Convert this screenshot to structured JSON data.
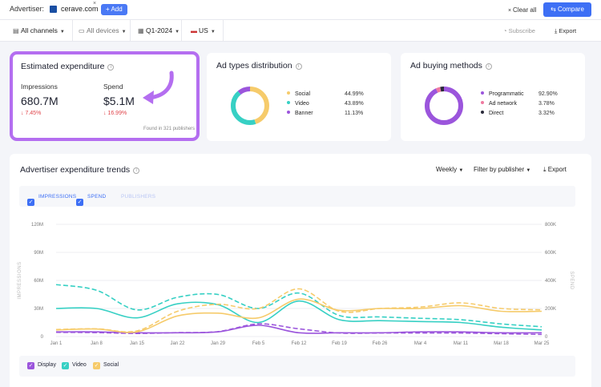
{
  "topbar": {
    "advertiser_label": "Advertiser:",
    "advertiser_name": "cerave.com",
    "remove_label": "×",
    "add_label": "+ Add",
    "clear_all": "Clear all",
    "compare": "Compare"
  },
  "filters": {
    "channels": "All channels",
    "devices": "All devices",
    "period": "Q1-2024",
    "country": "US",
    "subscribe": "Subscribe",
    "export": "Export"
  },
  "estimated": {
    "title": "Estimated expenditure",
    "impressions_label": "Impressions",
    "impressions_value": "680.7M",
    "impressions_change": "↓ 7.45%",
    "spend_label": "Spend",
    "spend_value": "$5.1M",
    "spend_change": "↓ 16.99%",
    "found": "Found in 321 publishers"
  },
  "ad_types": {
    "title": "Ad types distribution",
    "items": [
      {
        "label": "Social",
        "pct": "44.99%",
        "value": 44.99,
        "color": "#f6cb6b"
      },
      {
        "label": "Video",
        "pct": "43.89%",
        "value": 43.89,
        "color": "#37d0c4"
      },
      {
        "label": "Banner",
        "pct": "11.13%",
        "value": 11.13,
        "color": "#9b55dc"
      }
    ]
  },
  "buying": {
    "title": "Ad buying methods",
    "items": [
      {
        "label": "Programmatic",
        "pct": "92.90%",
        "value": 92.9,
        "color": "#9b55dc"
      },
      {
        "label": "Ad network",
        "pct": "3.78%",
        "value": 3.78,
        "color": "#ef7aa0"
      },
      {
        "label": "Direct",
        "pct": "3.32%",
        "value": 3.32,
        "color": "#2a2a3a"
      }
    ]
  },
  "trends": {
    "title": "Advertiser expenditure trends",
    "weekly": "Weekly",
    "filter_publisher": "Filter by publisher",
    "export": "Export",
    "cb_impressions": "IMPRESSIONS",
    "cb_spend": "SPEND",
    "cb_publishers": "PUBLISHERS",
    "legend": {
      "display": "Display",
      "video": "Video",
      "social": "Social"
    }
  },
  "chart_data": {
    "type": "line",
    "x": [
      "Jan 1",
      "Jan 8",
      "Jan 15",
      "Jan 22",
      "Jan 29",
      "Feb 5",
      "Feb 12",
      "Feb 19",
      "Feb 26",
      "Mar 4",
      "Mar 11",
      "Mar 18",
      "Mar 25"
    ],
    "y_left_ticks": [
      "0",
      "30M",
      "60M",
      "90M",
      "120M"
    ],
    "y_left_max": 120,
    "y_left_label": "IMPRESSIONS",
    "y_right_ticks": [
      "0",
      "200K",
      "400K",
      "600K",
      "800K"
    ],
    "y_right_max": 800,
    "y_right_label": "SPEND",
    "series": [
      {
        "name": "Display",
        "metric": "impressions",
        "color": "#9b55dc",
        "dash": false,
        "values": [
          5,
          5,
          4,
          4,
          5,
          12,
          4,
          4,
          4,
          5,
          5,
          4,
          4
        ]
      },
      {
        "name": "Display",
        "metric": "spend",
        "color": "#9b55dc",
        "dash": true,
        "values": [
          30,
          28,
          22,
          28,
          35,
          90,
          55,
          25,
          25,
          25,
          25,
          20,
          15
        ]
      },
      {
        "name": "Video",
        "metric": "impressions",
        "color": "#37d0c4",
        "dash": false,
        "values": [
          30,
          30,
          20,
          35,
          34,
          15,
          38,
          18,
          17,
          16,
          15,
          10,
          7
        ]
      },
      {
        "name": "Video",
        "metric": "spend",
        "color": "#37d0c4",
        "dash": true,
        "values": [
          370,
          330,
          190,
          280,
          300,
          200,
          310,
          150,
          140,
          130,
          120,
          90,
          70
        ]
      },
      {
        "name": "Social",
        "metric": "impressions",
        "color": "#f6cb6b",
        "dash": false,
        "values": [
          7,
          8,
          5,
          22,
          25,
          20,
          40,
          28,
          30,
          30,
          33,
          27,
          27
        ]
      },
      {
        "name": "Social",
        "metric": "spend",
        "color": "#f6cb6b",
        "dash": true,
        "values": [
          50,
          55,
          40,
          180,
          230,
          200,
          340,
          180,
          200,
          210,
          240,
          200,
          190
        ]
      }
    ]
  }
}
